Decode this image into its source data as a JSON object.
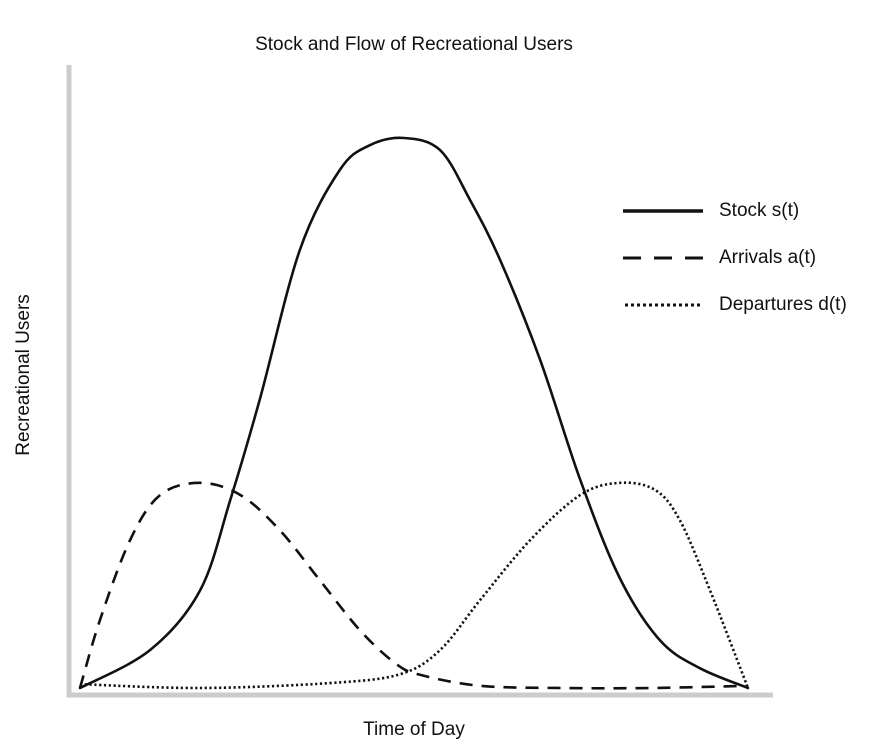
{
  "chart_data": {
    "type": "line",
    "title": "Stock and Flow of Recreational Users",
    "xlabel": "Time of Day",
    "ylabel": "Recreational Users",
    "grid": false,
    "legend_placement": "top-right",
    "axis_ticks": false,
    "xlim": [
      0,
      100
    ],
    "ylim": [
      0,
      100
    ],
    "series": [
      {
        "name": "Stock s(t)",
        "style": "solid",
        "color": "#111111",
        "x": [
          0,
          10.5,
          18,
          22.5,
          26.9,
          32.9,
          38.9,
          43.4,
          48.5,
          53.9,
          58.4,
          62.9,
          68.9,
          74.9,
          80.8,
          86.8,
          92.8,
          100
        ],
        "y": [
          0,
          6.9,
          17.8,
          34.2,
          52.4,
          79.6,
          94.2,
          98.7,
          100,
          97.8,
          88.7,
          77.8,
          59.6,
          37.8,
          20,
          8.7,
          3.6,
          0
        ]
      },
      {
        "name": "Arrivals a(t)",
        "style": "dashed",
        "color": "#111111",
        "x": [
          0,
          3,
          7.5,
          12,
          18,
          24,
          29.9,
          35.9,
          41.9,
          47.2,
          50.9,
          59.9,
          71.9,
          85.3,
          100
        ],
        "y": [
          0,
          12.4,
          26.9,
          35.1,
          37.3,
          35.1,
          28.7,
          19.6,
          10.5,
          4.5,
          2.4,
          0.4,
          0,
          0,
          0.4
        ]
      },
      {
        "name": "Departures d(t)",
        "style": "dotted",
        "color": "#111111",
        "x": [
          0,
          18,
          37.4,
          47.9,
          53.9,
          59.9,
          67.4,
          74.9,
          80.8,
          86.1,
          89.8,
          94.3,
          100
        ],
        "y": [
          0.7,
          0,
          0.9,
          2.5,
          6.9,
          16,
          26.9,
          35.1,
          37.3,
          36,
          30.5,
          17.8,
          0
        ]
      }
    ],
    "axis_color": "#cccccc"
  }
}
